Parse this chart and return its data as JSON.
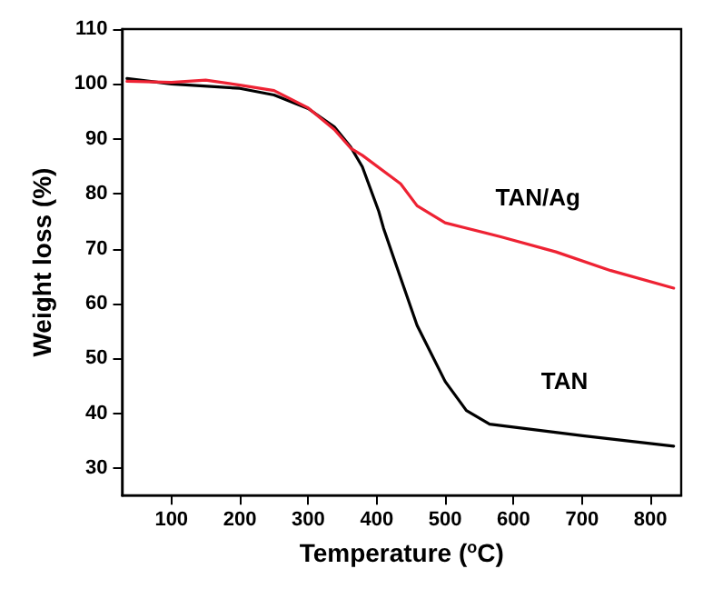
{
  "chart_data": {
    "type": "line",
    "xlabel": "Temperature ($^{o}$C)",
    "ylabel": "Weight loss (%)",
    "xlim": [
      28,
      845
    ],
    "ylim": [
      25,
      110
    ],
    "xticks": [
      100,
      200,
      300,
      400,
      500,
      600,
      700,
      800
    ],
    "yticks": [
      30,
      40,
      50,
      60,
      70,
      80,
      90,
      100,
      110
    ],
    "grid": false,
    "marker": "none",
    "line_style": "solid",
    "series": [
      {
        "name": "TAN",
        "color": "#000000",
        "x": [
          35,
          100,
          200,
          250,
          300,
          338,
          362,
          379,
          403,
          410,
          427,
          459,
          500,
          531,
          565,
          701,
          834
        ],
        "values": [
          101,
          100,
          99.2,
          98,
          95.5,
          92.2,
          88.5,
          84.9,
          76.8,
          73.7,
          67.5,
          56,
          45.8,
          40.5,
          38,
          35.9,
          34
        ]
      },
      {
        "name": "TAN/Ag",
        "color": "#ee2233",
        "x": [
          35,
          100,
          150,
          200,
          250,
          299,
          338,
          362,
          379,
          435,
          459,
          500,
          580,
          662,
          742,
          834
        ],
        "values": [
          100.5,
          100.3,
          100.7,
          99.8,
          98.8,
          95.7,
          91.7,
          88.3,
          87,
          81.8,
          77.8,
          74.7,
          72.2,
          69.4,
          66,
          62.8
        ]
      }
    ]
  }
}
